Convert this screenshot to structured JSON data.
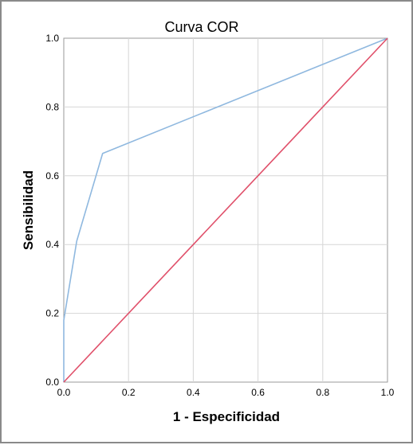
{
  "chart_data": {
    "type": "line",
    "title": "Curva COR",
    "xlabel": "1 - Especificidad",
    "ylabel": "Sensibilidad",
    "xlim": [
      0.0,
      1.0
    ],
    "ylim": [
      0.0,
      1.0
    ],
    "x_ticks": [
      "0.0",
      "0.2",
      "0.4",
      "0.6",
      "0.8",
      "1.0"
    ],
    "y_ticks": [
      "0.0",
      "0.2",
      "0.4",
      "0.6",
      "0.8",
      "1.0"
    ],
    "grid": true,
    "series": [
      {
        "color": "#8fb8df",
        "points": [
          [
            0.0,
            0.0
          ],
          [
            0.0,
            0.18
          ],
          [
            0.04,
            0.41
          ],
          [
            0.12,
            0.665
          ],
          [
            1.0,
            1.0
          ]
        ]
      },
      {
        "color": "#e0506a",
        "points": [
          [
            0.0,
            0.0
          ],
          [
            1.0,
            1.0
          ]
        ]
      }
    ]
  }
}
